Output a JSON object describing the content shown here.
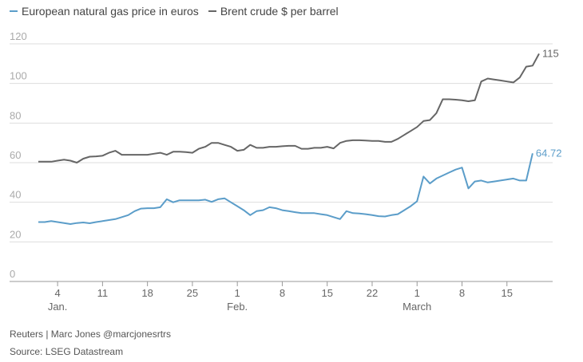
{
  "legend": [
    {
      "label": "European natural gas price in euros",
      "color": "#5b9dc9"
    },
    {
      "label": "Brent crude $ per barrel",
      "color": "#666666"
    }
  ],
  "footer": {
    "credit": "Reuters | Marc Jones @marcjonesrtrs",
    "source": "Source: LSEG Datastream"
  },
  "chart_data": {
    "type": "line",
    "ylim": [
      0,
      120
    ],
    "yticks": [
      0,
      20,
      40,
      60,
      80,
      100,
      120
    ],
    "grid": true,
    "legend_position": "top-left",
    "xlim": [
      "2022-01-01",
      "2022-03-21"
    ],
    "xticks": [
      {
        "date": "2022-01-04",
        "label": "4",
        "month": "Jan."
      },
      {
        "date": "2022-01-11",
        "label": "11"
      },
      {
        "date": "2022-01-18",
        "label": "18"
      },
      {
        "date": "2022-01-25",
        "label": "25"
      },
      {
        "date": "2022-02-01",
        "label": "1",
        "month": "Feb."
      },
      {
        "date": "2022-02-08",
        "label": "8"
      },
      {
        "date": "2022-02-15",
        "label": "15"
      },
      {
        "date": "2022-02-22",
        "label": "22"
      },
      {
        "date": "2022-03-01",
        "label": "1",
        "month": "March"
      },
      {
        "date": "2022-03-08",
        "label": "8"
      },
      {
        "date": "2022-03-15",
        "label": "15"
      }
    ],
    "series": [
      {
        "name": "European natural gas price in euros",
        "color": "#5b9dc9",
        "end_label": "64.72",
        "points": [
          [
            "2022-01-01",
            30
          ],
          [
            "2022-01-02",
            30
          ],
          [
            "2022-01-03",
            30.5
          ],
          [
            "2022-01-04",
            30
          ],
          [
            "2022-01-05",
            29.5
          ],
          [
            "2022-01-06",
            29
          ],
          [
            "2022-01-07",
            29.5
          ],
          [
            "2022-01-08",
            29.8
          ],
          [
            "2022-01-09",
            29.4
          ],
          [
            "2022-01-10",
            30
          ],
          [
            "2022-01-11",
            30.5
          ],
          [
            "2022-01-12",
            31
          ],
          [
            "2022-01-13",
            31.5
          ],
          [
            "2022-01-14",
            32.5
          ],
          [
            "2022-01-15",
            33.5
          ],
          [
            "2022-01-16",
            35.5
          ],
          [
            "2022-01-17",
            36.8
          ],
          [
            "2022-01-18",
            37
          ],
          [
            "2022-01-19",
            37
          ],
          [
            "2022-01-20",
            37.5
          ],
          [
            "2022-01-21",
            41.5
          ],
          [
            "2022-01-22",
            40
          ],
          [
            "2022-01-23",
            41
          ],
          [
            "2022-01-24",
            41
          ],
          [
            "2022-01-25",
            41
          ],
          [
            "2022-01-26",
            41
          ],
          [
            "2022-01-27",
            41.3
          ],
          [
            "2022-01-28",
            40.2
          ],
          [
            "2022-01-29",
            41.5
          ],
          [
            "2022-01-30",
            42
          ],
          [
            "2022-01-31",
            40
          ],
          [
            "2022-02-01",
            38
          ],
          [
            "2022-02-02",
            36
          ],
          [
            "2022-02-03",
            33.5
          ],
          [
            "2022-02-04",
            35.5
          ],
          [
            "2022-02-05",
            36
          ],
          [
            "2022-02-06",
            37.5
          ],
          [
            "2022-02-07",
            37
          ],
          [
            "2022-02-08",
            36
          ],
          [
            "2022-02-09",
            35.5
          ],
          [
            "2022-02-10",
            35
          ],
          [
            "2022-02-11",
            34.5
          ],
          [
            "2022-02-12",
            34.5
          ],
          [
            "2022-02-13",
            34.5
          ],
          [
            "2022-02-14",
            34
          ],
          [
            "2022-02-15",
            33.5
          ],
          [
            "2022-02-16",
            32.5
          ],
          [
            "2022-02-17",
            31.5
          ],
          [
            "2022-02-18",
            35.5
          ],
          [
            "2022-02-19",
            34.5
          ],
          [
            "2022-02-20",
            34.3
          ],
          [
            "2022-02-21",
            34
          ],
          [
            "2022-02-22",
            33.5
          ],
          [
            "2022-02-23",
            33
          ],
          [
            "2022-02-24",
            32.8
          ],
          [
            "2022-02-25",
            33.5
          ],
          [
            "2022-02-26",
            34
          ],
          [
            "2022-02-27",
            36
          ],
          [
            "2022-02-28",
            38
          ],
          [
            "2022-03-01",
            40.5
          ],
          [
            "2022-03-02",
            53
          ],
          [
            "2022-03-03",
            49.5
          ],
          [
            "2022-03-04",
            52
          ],
          [
            "2022-03-05",
            53.5
          ],
          [
            "2022-03-06",
            55
          ],
          [
            "2022-03-07",
            56.5
          ],
          [
            "2022-03-08",
            57.5
          ],
          [
            "2022-03-09",
            47
          ],
          [
            "2022-03-10",
            50.5
          ],
          [
            "2022-03-11",
            51
          ],
          [
            "2022-03-12",
            50
          ],
          [
            "2022-03-13",
            50.5
          ],
          [
            "2022-03-14",
            51
          ],
          [
            "2022-03-15",
            51.5
          ],
          [
            "2022-03-16",
            52
          ],
          [
            "2022-03-17",
            51
          ],
          [
            "2022-03-18",
            51
          ],
          [
            "2022-03-19",
            64.72
          ]
        ]
      },
      {
        "name": "Brent crude $ per barrel",
        "color": "#666666",
        "end_label": "115",
        "points": [
          [
            "2022-01-01",
            60.5
          ],
          [
            "2022-01-02",
            60.5
          ],
          [
            "2022-01-03",
            60.5
          ],
          [
            "2022-01-04",
            61
          ],
          [
            "2022-01-05",
            61.5
          ],
          [
            "2022-01-06",
            61
          ],
          [
            "2022-01-07",
            60
          ],
          [
            "2022-01-08",
            62
          ],
          [
            "2022-01-09",
            63
          ],
          [
            "2022-01-10",
            63.2
          ],
          [
            "2022-01-11",
            63.5
          ],
          [
            "2022-01-12",
            65
          ],
          [
            "2022-01-13",
            66
          ],
          [
            "2022-01-14",
            64
          ],
          [
            "2022-01-15",
            64
          ],
          [
            "2022-01-16",
            64
          ],
          [
            "2022-01-17",
            64
          ],
          [
            "2022-01-18",
            64
          ],
          [
            "2022-01-19",
            64.5
          ],
          [
            "2022-01-20",
            65
          ],
          [
            "2022-01-21",
            64
          ],
          [
            "2022-01-22",
            65.5
          ],
          [
            "2022-01-23",
            65.5
          ],
          [
            "2022-01-24",
            65.3
          ],
          [
            "2022-01-25",
            65
          ],
          [
            "2022-01-26",
            67
          ],
          [
            "2022-01-27",
            68
          ],
          [
            "2022-01-28",
            70
          ],
          [
            "2022-01-29",
            70
          ],
          [
            "2022-01-30",
            69
          ],
          [
            "2022-01-31",
            68
          ],
          [
            "2022-02-01",
            66
          ],
          [
            "2022-02-02",
            66.5
          ],
          [
            "2022-02-03",
            69
          ],
          [
            "2022-02-04",
            67.5
          ],
          [
            "2022-02-05",
            67.5
          ],
          [
            "2022-02-06",
            68
          ],
          [
            "2022-02-07",
            68
          ],
          [
            "2022-02-08",
            68.3
          ],
          [
            "2022-02-09",
            68.5
          ],
          [
            "2022-02-10",
            68.5
          ],
          [
            "2022-02-11",
            67
          ],
          [
            "2022-02-12",
            67
          ],
          [
            "2022-02-13",
            67.5
          ],
          [
            "2022-02-14",
            67.5
          ],
          [
            "2022-02-15",
            68
          ],
          [
            "2022-02-16",
            67.2
          ],
          [
            "2022-02-17",
            70
          ],
          [
            "2022-02-18",
            71
          ],
          [
            "2022-02-19",
            71.3
          ],
          [
            "2022-02-20",
            71.3
          ],
          [
            "2022-02-21",
            71.2
          ],
          [
            "2022-02-22",
            71
          ],
          [
            "2022-02-23",
            71
          ],
          [
            "2022-02-24",
            70.5
          ],
          [
            "2022-02-25",
            70.5
          ],
          [
            "2022-02-26",
            72
          ],
          [
            "2022-02-27",
            74
          ],
          [
            "2022-02-28",
            76
          ],
          [
            "2022-03-01",
            78
          ],
          [
            "2022-03-02",
            81
          ],
          [
            "2022-03-03",
            81.5
          ],
          [
            "2022-03-04",
            85
          ],
          [
            "2022-03-05",
            92
          ],
          [
            "2022-03-06",
            92
          ],
          [
            "2022-03-07",
            91.8
          ],
          [
            "2022-03-08",
            91.5
          ],
          [
            "2022-03-09",
            91
          ],
          [
            "2022-03-10",
            91.5
          ],
          [
            "2022-03-11",
            101
          ],
          [
            "2022-03-12",
            102.5
          ],
          [
            "2022-03-13",
            102
          ],
          [
            "2022-03-14",
            101.5
          ],
          [
            "2022-03-15",
            101
          ],
          [
            "2022-03-16",
            100.5
          ],
          [
            "2022-03-17",
            103
          ],
          [
            "2022-03-18",
            108.5
          ],
          [
            "2022-03-19",
            109
          ],
          [
            "2022-03-20",
            115
          ]
        ]
      }
    ]
  }
}
